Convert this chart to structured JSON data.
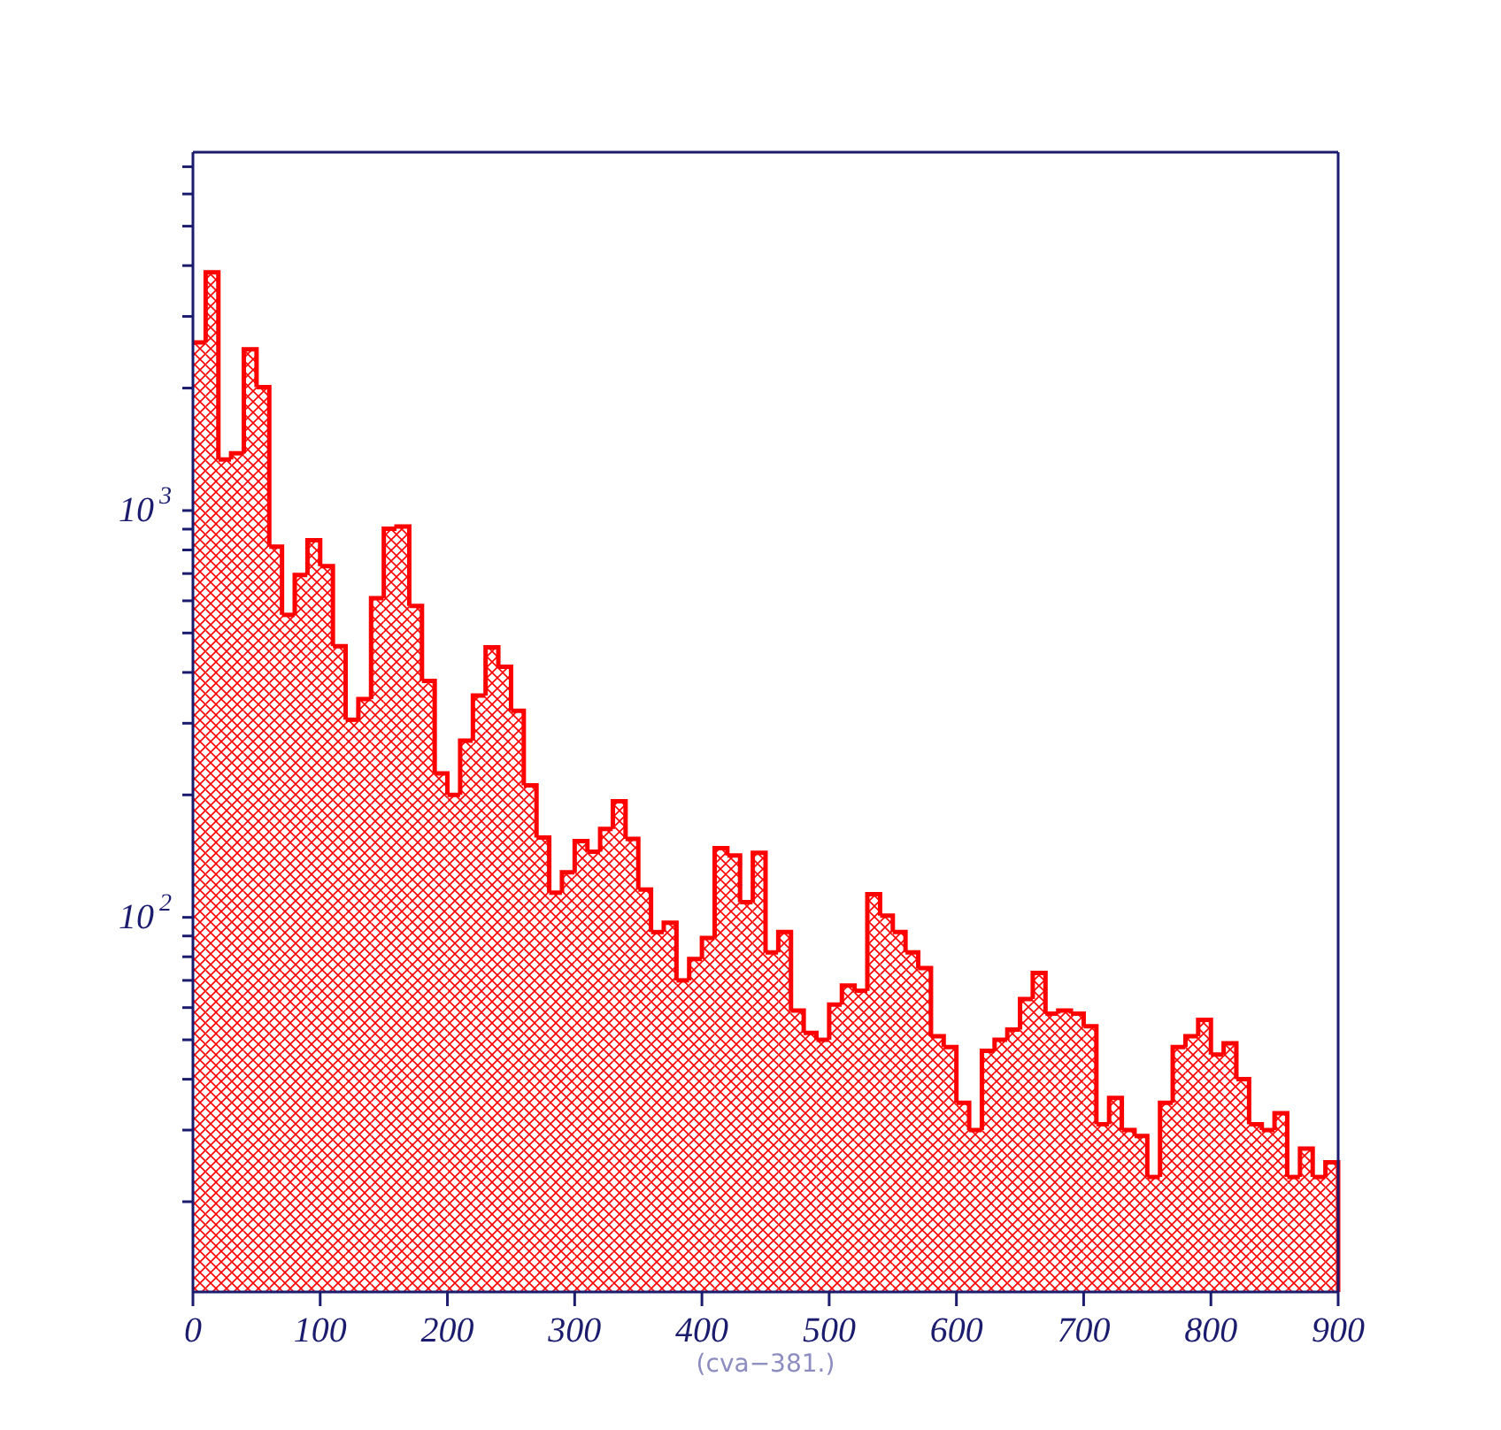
{
  "chart_data": {
    "type": "histogram",
    "bins": [
      0,
      10,
      20,
      30,
      40,
      50,
      60,
      70,
      80,
      90,
      100,
      110,
      120,
      130,
      140,
      150,
      160,
      170,
      180,
      190,
      200,
      210,
      220,
      230,
      240,
      250,
      260,
      270,
      280,
      290,
      300,
      310,
      320,
      330,
      340,
      350,
      360,
      370,
      380,
      390,
      400,
      410,
      420,
      430,
      440,
      450,
      460,
      470,
      480,
      490,
      500,
      510,
      520,
      530,
      540,
      550,
      560,
      570,
      580,
      590,
      600,
      610,
      620,
      630,
      640,
      650,
      660,
      670,
      680,
      690,
      700,
      710,
      720,
      730,
      740,
      750,
      760,
      770,
      780,
      790,
      800,
      810,
      820,
      830,
      840,
      850,
      860,
      870,
      880,
      890,
      900
    ],
    "values": [
      2590,
      3850,
      1335,
      1383,
      2490,
      2010,
      815,
      554,
      694,
      845,
      730,
      464,
      306,
      344,
      609,
      902,
      914,
      583,
      381,
      226,
      200,
      272,
      351,
      461,
      413,
      322,
      211,
      157,
      115,
      129,
      154,
      145,
      165,
      193,
      156,
      117,
      92,
      97,
      70,
      79,
      89,
      148,
      142,
      109,
      144,
      82,
      92,
      59,
      52,
      50,
      61,
      68,
      66,
      114,
      101,
      92,
      82,
      75,
      51,
      48,
      35,
      30,
      47,
      50,
      53,
      63,
      73,
      58,
      59,
      58,
      54,
      31,
      36,
      30,
      29,
      23,
      35,
      48,
      51,
      56,
      46,
      49,
      40,
      31,
      30,
      33,
      23,
      27,
      23,
      25
    ],
    "color": "#ff0000",
    "xlim": [
      0,
      900
    ],
    "xticks": [
      0,
      100,
      200,
      300,
      400,
      500,
      600,
      700,
      800,
      900
    ],
    "ylim": [
      12,
      7600
    ],
    "yticks": [
      {
        "value": 20,
        "label": null
      },
      {
        "value": 30,
        "label": null
      },
      {
        "value": 40,
        "label": null
      },
      {
        "value": 50,
        "label": null
      },
      {
        "value": 60,
        "label": null
      },
      {
        "value": 70,
        "label": null
      },
      {
        "value": 80,
        "label": null
      },
      {
        "value": 90,
        "label": null
      },
      {
        "value": 100,
        "label": "10$^{2}$"
      },
      {
        "value": 200,
        "label": null
      },
      {
        "value": 300,
        "label": null
      },
      {
        "value": 400,
        "label": null
      },
      {
        "value": 500,
        "label": null
      },
      {
        "value": 600,
        "label": null
      },
      {
        "value": 700,
        "label": null
      },
      {
        "value": 800,
        "label": null
      },
      {
        "value": 900,
        "label": null
      },
      {
        "value": 1000,
        "label": "10$^{3}$"
      },
      {
        "value": 2000,
        "label": null
      },
      {
        "value": 3000,
        "label": null
      },
      {
        "value": 4000,
        "label": null
      },
      {
        "value": 5000,
        "label": null
      },
      {
        "value": 6000,
        "label": null
      },
      {
        "value": 7000,
        "label": null
      }
    ],
    "log": true,
    "annotations": [
      "(cva−381.)"
    ]
  }
}
